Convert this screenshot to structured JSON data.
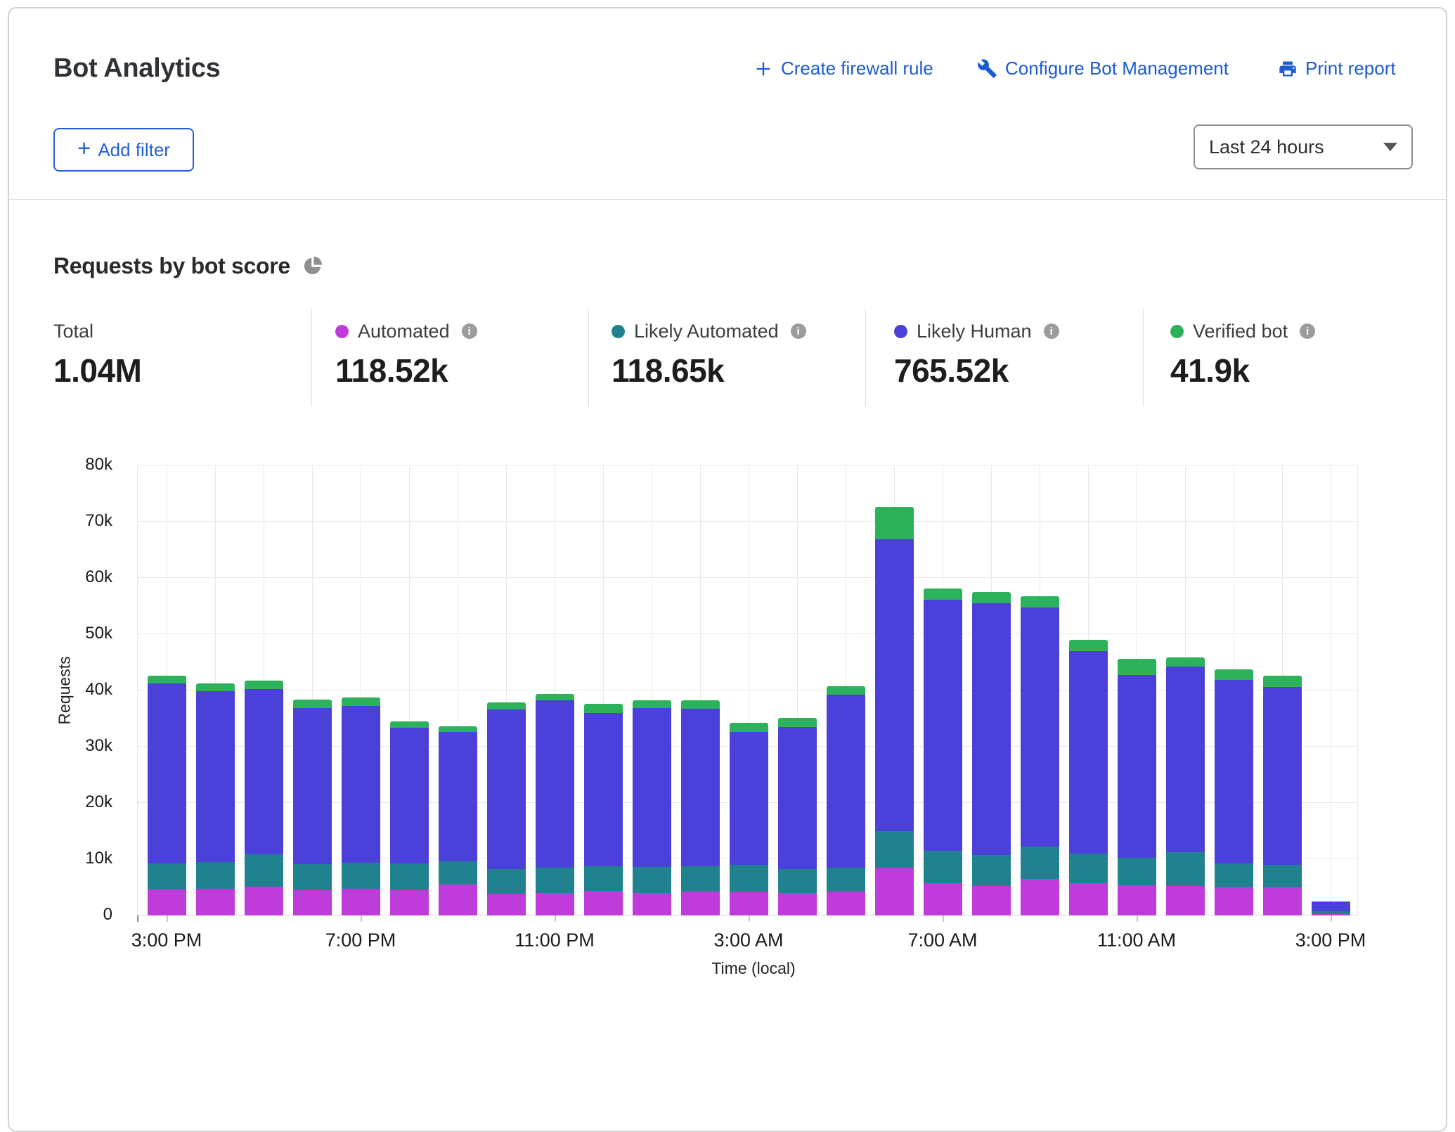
{
  "header": {
    "title": "Bot Analytics",
    "actions": [
      {
        "label": "Create firewall rule",
        "icon": "plus-icon"
      },
      {
        "label": "Configure Bot Management",
        "icon": "wrench-icon"
      },
      {
        "label": "Print report",
        "icon": "printer-icon"
      }
    ],
    "add_filter_label": "Add filter",
    "time_range_value": "Last 24 hours"
  },
  "section": {
    "title": "Requests by bot score"
  },
  "stats": [
    {
      "label": "Total",
      "value": "1.04M",
      "color": null
    },
    {
      "label": "Automated",
      "value": "118.52k",
      "color": "#bf3cdb"
    },
    {
      "label": "Likely Automated",
      "value": "118.65k",
      "color": "#20828f"
    },
    {
      "label": "Likely Human",
      "value": "765.52k",
      "color": "#4b41da"
    },
    {
      "label": "Verified bot",
      "value": "41.9k",
      "color": "#2cb25a"
    }
  ],
  "chart_data": {
    "type": "bar",
    "stacked": true,
    "xlabel": "Time (local)",
    "ylabel": "Requests",
    "ylim": [
      0,
      80000
    ],
    "ytick_step": 10000,
    "ytick_labels": [
      "0",
      "10k",
      "20k",
      "30k",
      "40k",
      "50k",
      "60k",
      "70k",
      "80k"
    ],
    "xtick_positions": [
      0,
      4,
      8,
      12,
      16,
      20,
      24
    ],
    "xtick_labels": [
      "3:00 PM",
      "7:00 PM",
      "11:00 PM",
      "3:00 AM",
      "7:00 AM",
      "11:00 AM",
      "3:00 PM"
    ],
    "grid": true,
    "legend_position": "top",
    "series": [
      {
        "name": "Automated",
        "color": "#bf3cdb",
        "values": [
          4600,
          4700,
          5100,
          4500,
          4800,
          4500,
          5500,
          3900,
          4000,
          4400,
          4000,
          4200,
          4100,
          4000,
          4200,
          8500,
          5700,
          5300,
          6500,
          5700,
          5400,
          5300,
          5000,
          5000,
          250
        ]
      },
      {
        "name": "Likely Automated",
        "color": "#20828f",
        "values": [
          4700,
          4800,
          5800,
          4600,
          4600,
          4800,
          4100,
          4300,
          4500,
          4400,
          4600,
          4600,
          4900,
          4200,
          4300,
          6500,
          5800,
          5500,
          5700,
          5300,
          4800,
          6000,
          4300,
          4000,
          450
        ]
      },
      {
        "name": "Likely Human",
        "color": "#4b41da",
        "values": [
          31900,
          30400,
          29300,
          27800,
          27900,
          24100,
          23000,
          28400,
          29700,
          27200,
          28300,
          27900,
          23600,
          25300,
          30700,
          51900,
          44600,
          44700,
          42500,
          36000,
          32600,
          32900,
          32600,
          31600,
          1700
        ]
      },
      {
        "name": "Verified bot",
        "color": "#2cb25a",
        "values": [
          1400,
          1400,
          1500,
          1500,
          1400,
          1100,
          1000,
          1300,
          1200,
          1600,
          1300,
          1500,
          1700,
          1600,
          1600,
          5700,
          2000,
          2000,
          2000,
          2000,
          2800,
          1700,
          1800,
          2000,
          100
        ]
      }
    ]
  }
}
